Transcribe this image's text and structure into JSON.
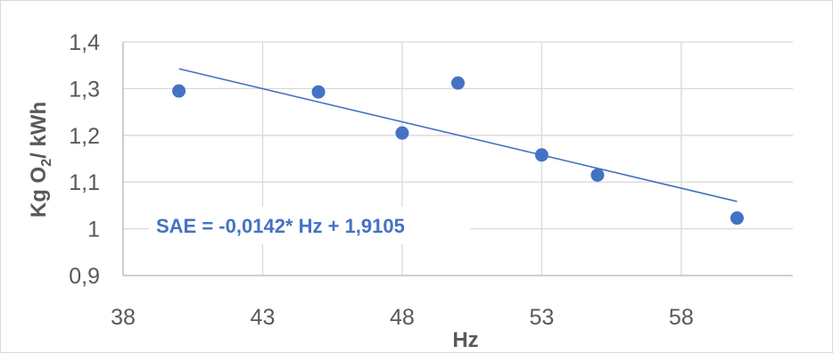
{
  "chart_data": {
    "type": "scatter",
    "title": "",
    "xlabel": "Hz",
    "ylabel_main": "Kg O",
    "ylabel_sub": "2",
    "ylabel_rest": "/ kWh",
    "xlim": [
      38,
      62
    ],
    "ylim": [
      0.9,
      1.4
    ],
    "x_ticks": [
      38,
      43,
      48,
      53,
      58
    ],
    "x_tick_labels": [
      "38",
      "43",
      "48",
      "53",
      "58"
    ],
    "y_ticks": [
      0.9,
      1.0,
      1.1,
      1.2,
      1.3,
      1.4
    ],
    "y_tick_labels": [
      "0,9",
      "1",
      "1,1",
      "1,2",
      "1,3",
      "1,4"
    ],
    "grid": true,
    "series": [
      {
        "points": [
          {
            "x": 40,
            "y": 1.295
          },
          {
            "x": 45,
            "y": 1.293
          },
          {
            "x": 48,
            "y": 1.205
          },
          {
            "x": 50,
            "y": 1.312
          },
          {
            "x": 53,
            "y": 1.158
          },
          {
            "x": 55,
            "y": 1.115
          },
          {
            "x": 60,
            "y": 1.023
          }
        ]
      }
    ],
    "trendline": {
      "slope": -0.0142,
      "intercept": 1.9105,
      "x_range": [
        40,
        60
      ],
      "equation": "SAE = -0,0142* Hz + 1,9105"
    },
    "colors": {
      "marker": "#4472c4",
      "trendline": "#4472c4",
      "grid": "#d9d9d9",
      "axis": "#bfbfbf",
      "text": "#595959"
    }
  }
}
